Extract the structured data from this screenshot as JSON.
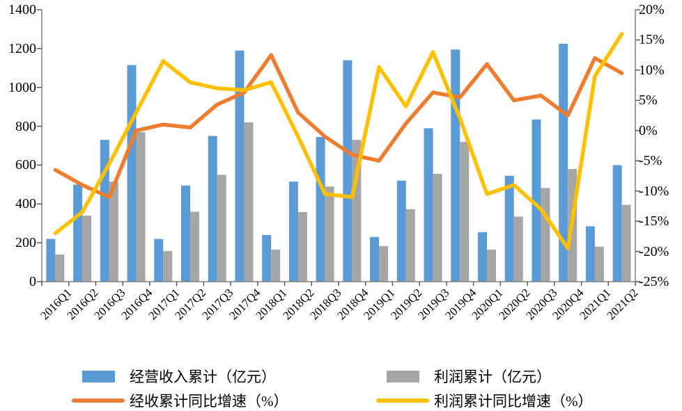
{
  "chart_data": {
    "type": "bar",
    "subtype": "combo-bar-line-dual-axis",
    "title": "",
    "grid": false,
    "legend_position": "bottom",
    "categories": [
      "2016Q1",
      "2016Q2",
      "2016Q3",
      "2016Q4",
      "2017Q1",
      "2017Q2",
      "2017Q3",
      "2017Q4",
      "2018Q1",
      "2018Q2",
      "2018Q3",
      "2018Q4",
      "2019Q1",
      "2019Q2",
      "2019Q3",
      "2019Q4",
      "2020Q1",
      "2020Q2",
      "2020Q3",
      "2020Q4",
      "2021Q1",
      "2021Q2"
    ],
    "series": [
      {
        "key": "revenue-total",
        "name": "经营收入累计（亿元）",
        "type": "bar",
        "axis": "left",
        "color": "#5B9BD5",
        "values": [
          220,
          500,
          730,
          1115,
          220,
          495,
          750,
          1190,
          240,
          515,
          745,
          1140,
          230,
          520,
          790,
          1195,
          255,
          545,
          835,
          1225,
          285,
          600
        ]
      },
      {
        "key": "profit-total",
        "name": "利润累计（亿元）",
        "type": "bar",
        "axis": "left",
        "color": "#A6A6A6",
        "values": [
          140,
          340,
          515,
          770,
          158,
          360,
          550,
          820,
          165,
          358,
          490,
          730,
          183,
          373,
          555,
          720,
          165,
          335,
          482,
          580,
          180,
          395
        ]
      },
      {
        "key": "revenue-yoy",
        "name": "经收累计同比增速（%）",
        "type": "line",
        "axis": "right",
        "color": "#ED7D31",
        "values": [
          -6.5,
          -9,
          -11,
          0,
          1,
          0.5,
          4.3,
          6.3,
          12.5,
          3,
          -1,
          -4,
          -5,
          1.2,
          6.3,
          5.5,
          11,
          5,
          5.8,
          2.5,
          12,
          9.5
        ]
      },
      {
        "key": "profit-yoy",
        "name": "利润累计同比增速（%）",
        "type": "line",
        "axis": "right",
        "color": "#FFC000",
        "values": [
          -17,
          -13.5,
          -5.5,
          3,
          11.5,
          8,
          7,
          6.7,
          8,
          -1,
          -10.5,
          -11,
          10.5,
          4,
          13,
          2,
          -10.5,
          -9,
          -13,
          -19.5,
          9,
          16
        ]
      }
    ],
    "left_axis": {
      "min": 0,
      "max": 1400,
      "step": 200,
      "tick_labels": [
        "1400",
        "1200",
        "1000",
        "800",
        "600",
        "400",
        "200",
        "0"
      ]
    },
    "right_axis": {
      "min": -25,
      "max": 20,
      "step": 5,
      "tick_labels": [
        "20%",
        "15%",
        "10%",
        "5%",
        "0%",
        "-5%",
        "-10%",
        "-15%",
        "-20%",
        "-25%"
      ]
    },
    "colors": {
      "axis_line": "#808080",
      "tick": "#595959",
      "text": "#000000",
      "background": "#FFFFFF"
    }
  }
}
